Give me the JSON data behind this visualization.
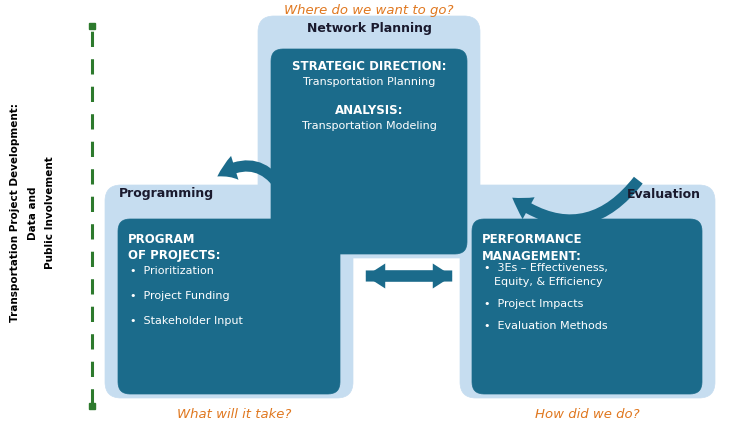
{
  "bg_color": "#ffffff",
  "light_blue": "#c6ddf0",
  "dark_teal": "#1b6b8b",
  "orange": "#e07820",
  "arrow_color": "#1b6b8b",
  "left_label_lines": [
    "Transportation Project Development:",
    "Data and",
    "Public Involvement"
  ],
  "dashed_line_color": "#2d7a2d",
  "top_question": "Where do we want to go?",
  "bottom_left_question": "What will it take?",
  "bottom_right_question": "How did we do?",
  "network_planning_label": "Network Planning",
  "programming_label": "Programming",
  "evaluation_label": "Evaluation",
  "center_title1": "STRATEGIC DIRECTION:",
  "center_sub1": "Transportation Planning",
  "center_title2": "ANALYSIS:",
  "center_sub2": "Transportation Modeling",
  "left_title": "PROGRAM\nOF PROJECTS:",
  "left_bullets": [
    "Prioritization",
    "Project Funding",
    "Stakeholder Input"
  ],
  "right_title": "PERFORMANCE\nMANAGEMENT:",
  "right_bullets": [
    "3Es – Effectiveness,\n    Equity, & Efficiency",
    "Project Impacts",
    "Evaluation Methods"
  ]
}
